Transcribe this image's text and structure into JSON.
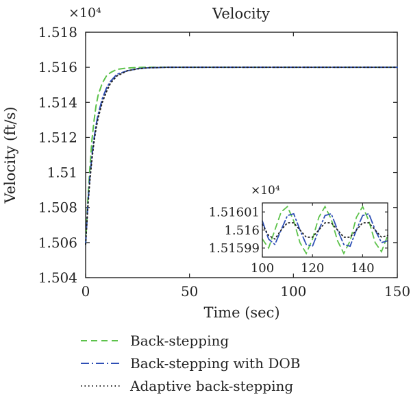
{
  "chart_data": {
    "type": "line",
    "title": "Velocity",
    "xlabel": "Time (sec)",
    "ylabel": "Velocity (ft/s)",
    "y_multiplier": "×10⁴",
    "xlim": [
      0,
      150
    ],
    "ylim": [
      1.504,
      1.518
    ],
    "xticks": [
      "0",
      "50",
      "100",
      "150"
    ],
    "yticks": [
      "1.504",
      "1.506",
      "1.508",
      "1.51",
      "1.512",
      "1.514",
      "1.516",
      "1.518"
    ],
    "grid": false,
    "legend_position": "bottom",
    "series": [
      {
        "name": "Back-stepping",
        "color": "#5cc24a",
        "dash": "dashed",
        "x": [
          0,
          1,
          2,
          3,
          4,
          5,
          6,
          8,
          10,
          12,
          15,
          20,
          25,
          30,
          40,
          60,
          80,
          100,
          120,
          150
        ],
        "y": [
          1.5059,
          1.5083,
          1.5102,
          1.5118,
          1.5129,
          1.5138,
          1.5144,
          1.5151,
          1.5155,
          1.5157,
          1.51588,
          1.51596,
          1.51599,
          1.516,
          1.516,
          1.516,
          1.516,
          1.516,
          1.516,
          1.516
        ]
      },
      {
        "name": "Back-stepping with DOB",
        "color": "#2e4fb5",
        "dash": "dashdot",
        "x": [
          0,
          1,
          2,
          3,
          4,
          5,
          6,
          8,
          10,
          12,
          15,
          20,
          25,
          30,
          40,
          60,
          80,
          100,
          120,
          150
        ],
        "y": [
          1.5059,
          1.508,
          1.5097,
          1.5109,
          1.5119,
          1.5127,
          1.5133,
          1.5142,
          1.5148,
          1.5152,
          1.5156,
          1.5158,
          1.51592,
          1.51597,
          1.516,
          1.516,
          1.516,
          1.516,
          1.516,
          1.516
        ]
      },
      {
        "name": "Adaptive back-stepping",
        "color": "#222222",
        "dash": "dotted",
        "x": [
          0,
          1,
          2,
          3,
          4,
          5,
          6,
          8,
          10,
          12,
          15,
          20,
          25,
          30,
          40,
          60,
          80,
          100,
          120,
          150
        ],
        "y": [
          1.5059,
          1.5079,
          1.5095,
          1.5107,
          1.5117,
          1.5125,
          1.5131,
          1.514,
          1.5146,
          1.5151,
          1.5155,
          1.5158,
          1.51591,
          1.51597,
          1.516,
          1.516,
          1.516,
          1.516,
          1.516,
          1.516
        ]
      }
    ],
    "inset": {
      "type": "line",
      "y_multiplier": "×10⁴",
      "xlim": [
        100,
        150
      ],
      "ylim": [
        1.515985,
        1.516015
      ],
      "xticks": [
        "100",
        "120",
        "140"
      ],
      "yticks": [
        "1.51601",
        "1.516",
        "1.51599"
      ],
      "series": [
        {
          "name": "Back-stepping",
          "x": [
            100,
            102.5,
            105,
            107.5,
            110,
            112.5,
            115,
            117.5,
            120,
            122.5,
            125,
            127.5,
            130,
            132.5,
            135,
            137.5,
            140,
            142.5,
            145,
            147.5,
            150
          ],
          "y": [
            1.515995,
            1.51599,
            1.516,
            1.51601,
            1.516013,
            1.516005,
            1.515993,
            1.515987,
            1.515995,
            1.516007,
            1.516013,
            1.516006,
            1.515994,
            1.515987,
            1.515994,
            1.516007,
            1.516013,
            1.516005,
            1.515993,
            1.515988,
            1.515997
          ]
        },
        {
          "name": "Back-stepping with DOB",
          "x": [
            100,
            102.5,
            105,
            107.5,
            110,
            112.5,
            115,
            117.5,
            120,
            122.5,
            125,
            127.5,
            130,
            132.5,
            135,
            137.5,
            140,
            142.5,
            145,
            147.5,
            150
          ],
          "y": [
            1.516005,
            1.515995,
            1.515992,
            1.516,
            1.516008,
            1.516009,
            1.516,
            1.515992,
            1.515991,
            1.516,
            1.516008,
            1.516009,
            1.516,
            1.515992,
            1.515991,
            1.516,
            1.516008,
            1.516009,
            1.516,
            1.515993,
            1.515994
          ]
        },
        {
          "name": "Adaptive back-stepping",
          "x": [
            100,
            102.5,
            105,
            107.5,
            110,
            112.5,
            115,
            117.5,
            120,
            122.5,
            125,
            127.5,
            130,
            132.5,
            135,
            137.5,
            140,
            142.5,
            145,
            147.5,
            150
          ],
          "y": [
            1.516003,
            1.515997,
            1.515995,
            1.516,
            1.516004,
            1.516004,
            1.516,
            1.515996,
            1.515996,
            1.516,
            1.516004,
            1.516004,
            1.516,
            1.515996,
            1.515996,
            1.516,
            1.516004,
            1.516004,
            1.516,
            1.515996,
            1.515997
          ]
        }
      ]
    }
  }
}
